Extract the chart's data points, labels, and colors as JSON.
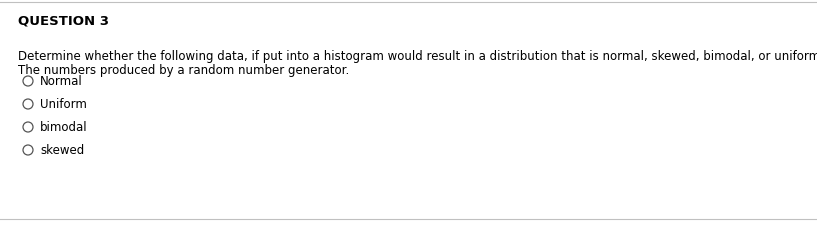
{
  "title": "QUESTION 3",
  "body_line1": "Determine whether the following data, if put into a histogram would result in a distribution that is normal, skewed, bimodal, or uniform.",
  "body_line2": "The numbers produced by a random number generator.",
  "options": [
    "Normal",
    "Uniform",
    "bimodal",
    "skewed"
  ],
  "background_color": "#ffffff",
  "border_color": "#c0c0c0",
  "title_fontsize": 9.5,
  "body_fontsize": 8.5,
  "option_fontsize": 8.5
}
